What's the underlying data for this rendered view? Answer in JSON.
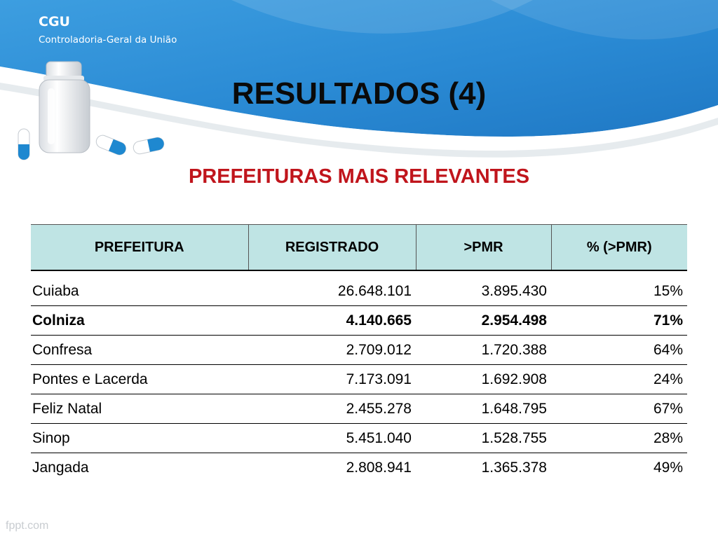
{
  "header": {
    "org_short": "CGU",
    "org_full": "Controladoria-Geral da União"
  },
  "title": "RESULTADOS (4)",
  "subtitle": "PREFEITURAS MAIS RELEVANTES",
  "table": {
    "columns": [
      "PREFEITURA",
      "REGISTRADO",
      ">PMR",
      "% (>PMR)"
    ],
    "rows": [
      {
        "prefeitura": "Cuiaba",
        "registrado": "26.648.101",
        "pmr": "3.895.430",
        "pct": "15%",
        "bold": false
      },
      {
        "prefeitura": "Colniza",
        "registrado": "4.140.665",
        "pmr": "2.954.498",
        "pct": "71%",
        "bold": true
      },
      {
        "prefeitura": "Confresa",
        "registrado": "2.709.012",
        "pmr": "1.720.388",
        "pct": "64%",
        "bold": false
      },
      {
        "prefeitura": "Pontes e Lacerda",
        "registrado": "7.173.091",
        "pmr": "1.692.908",
        "pct": "24%",
        "bold": false
      },
      {
        "prefeitura": "Feliz Natal",
        "registrado": "2.455.278",
        "pmr": "1.648.795",
        "pct": "67%",
        "bold": false
      },
      {
        "prefeitura": "Sinop",
        "registrado": "5.451.040",
        "pmr": "1.528.755",
        "pct": "28%",
        "bold": false
      },
      {
        "prefeitura": "Jangada",
        "registrado": "2.808.941",
        "pmr": "1.365.378",
        "pct": "49%",
        "bold": false
      }
    ]
  },
  "watermark": "fppt.com",
  "colors": {
    "title": "#0a0a0a",
    "subtitle": "#c0151c",
    "table_header_bg": "#bfe4e4",
    "banner_blue": "#2f8fd6"
  }
}
